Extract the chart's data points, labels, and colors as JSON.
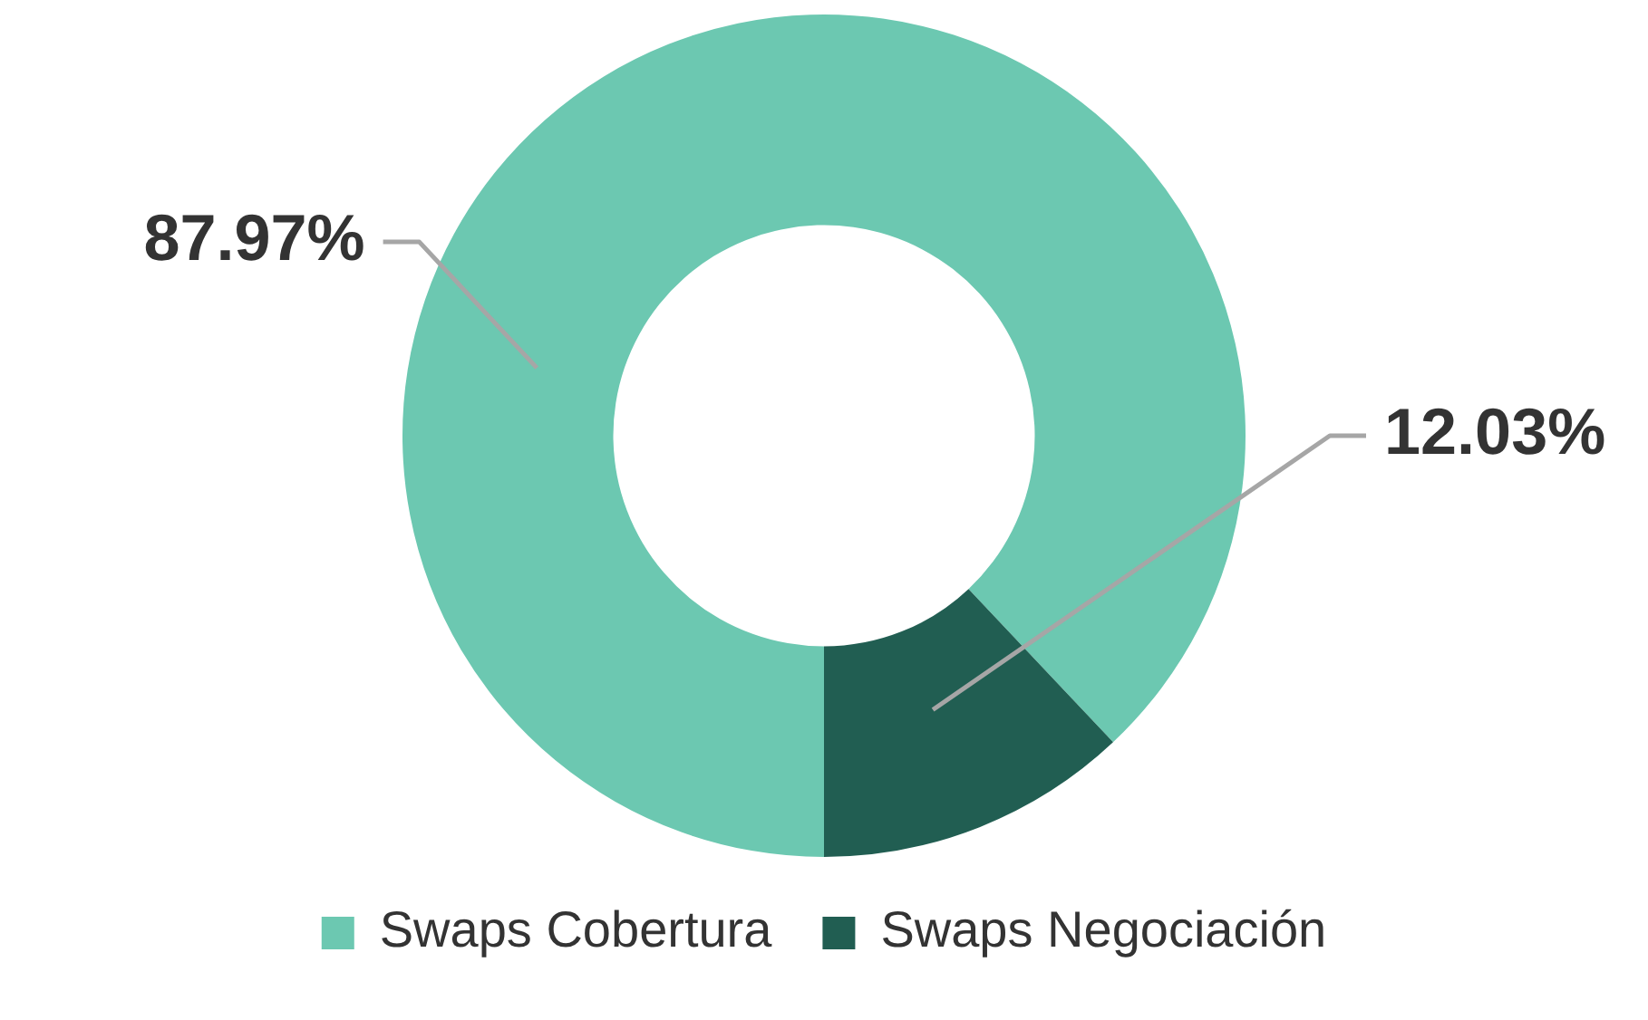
{
  "chart_data": {
    "type": "donut",
    "categories": [
      "Swaps Cobertura",
      "Swaps Negociación"
    ],
    "values": [
      87.97,
      12.03
    ],
    "colors": [
      "#6cc8b1",
      "#215e52"
    ],
    "value_labels": [
      "87.97%",
      "12.03%"
    ],
    "legend": "bottom"
  }
}
